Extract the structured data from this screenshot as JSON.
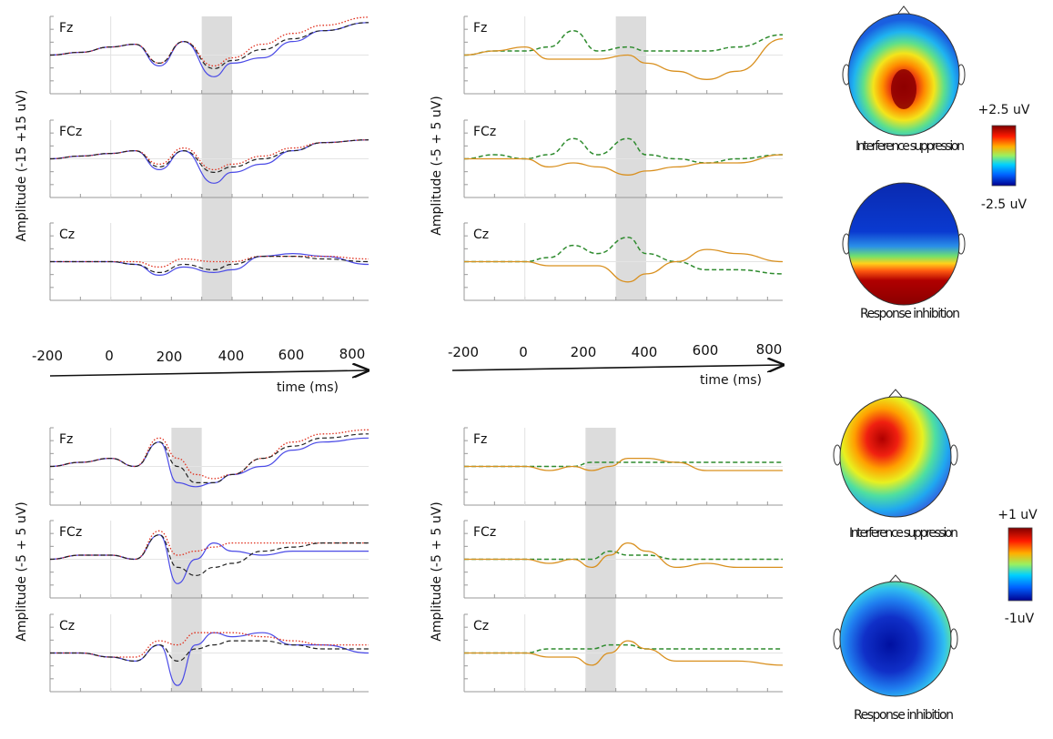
{
  "colors": {
    "blue": "#4a4ae6",
    "red_dotted": "#e0301e",
    "black_dashed": "#222222",
    "green_dashed": "#2e8b2e",
    "orange": "#d9901f",
    "shade": "#dcdcdc",
    "axis": "#999999"
  },
  "layout_labels": {
    "ylabel_top_left": "Amplitude (-15 +15 uV)",
    "ylabel_top_right": "Amplitude (-5 + 5 uV)",
    "ylabel_bottom_left": "Amplitude (-5 + 5 uV)",
    "ylabel_bottom_right": "Amplitude (-5 + 5 uV)",
    "time_axis_label": "time (ms)",
    "time_ticks": [
      "-200",
      "0",
      "200",
      "400",
      "600",
      "800"
    ]
  },
  "topomaps": {
    "top_interference": "Interference suppression",
    "top_inhibition": "Response inhibition",
    "top_colorbar_max": "+2.5 uV",
    "top_colorbar_min": "-2.5 uV",
    "bottom_interference": "Interference suppression",
    "bottom_inhibition": "Response inhibition",
    "bottom_colorbar_max": "+1 uV",
    "bottom_colorbar_min": "-1uV"
  },
  "chart_data": [
    {
      "type": "line",
      "panel": "top-left",
      "ylabel": "Amplitude (-15 +15 uV)",
      "xlabel": "time (ms)",
      "xlim": [
        -200,
        850
      ],
      "ylim": [
        -15,
        15
      ],
      "shaded_window": [
        300,
        400
      ],
      "channels": [
        {
          "label": "Fz",
          "x": [
            -200,
            -100,
            0,
            80,
            160,
            240,
            340,
            400,
            500,
            600,
            700,
            850
          ],
          "series": [
            {
              "style": "blue",
              "values": [
                0,
                1,
                3,
                4,
                -4,
                5,
                -8,
                -3,
                -1,
                5,
                9,
                12
              ]
            },
            {
              "style": "red_dotted",
              "values": [
                0,
                1,
                3,
                4,
                -3,
                5,
                -4,
                -1,
                4,
                8,
                11,
                14
              ]
            },
            {
              "style": "black_dashed",
              "values": [
                0,
                1,
                3,
                4,
                -3,
                5,
                -5,
                -2,
                2,
                6,
                9,
                12
              ]
            }
          ]
        },
        {
          "label": "FCz",
          "x": [
            -200,
            -100,
            0,
            80,
            160,
            240,
            340,
            400,
            500,
            600,
            700,
            850
          ],
          "series": [
            {
              "style": "blue",
              "values": [
                0,
                1,
                2,
                3,
                -4,
                3,
                -9,
                -5,
                -2,
                3,
                6,
                7
              ]
            },
            {
              "style": "red_dotted",
              "values": [
                0,
                1,
                2,
                3,
                -2,
                4,
                -4,
                -2,
                1,
                4,
                6,
                7
              ]
            },
            {
              "style": "black_dashed",
              "values": [
                0,
                1,
                2,
                3,
                -3,
                3,
                -5,
                -3,
                0,
                3,
                6,
                7
              ]
            }
          ]
        },
        {
          "label": "Cz",
          "x": [
            -200,
            -100,
            0,
            80,
            160,
            240,
            340,
            400,
            500,
            600,
            700,
            850
          ],
          "series": [
            {
              "style": "blue",
              "values": [
                0,
                0,
                0,
                -1,
                -5,
                -2,
                -4,
                -3,
                2,
                3,
                2,
                -1
              ]
            },
            {
              "style": "red_dotted",
              "values": [
                0,
                0,
                0,
                0,
                -2,
                1,
                0,
                0,
                2,
                2,
                2,
                1
              ]
            },
            {
              "style": "black_dashed",
              "values": [
                0,
                0,
                0,
                -1,
                -4,
                -1,
                -3,
                -1,
                2,
                2,
                1,
                0
              ]
            }
          ]
        }
      ]
    },
    {
      "type": "line",
      "panel": "top-right",
      "ylabel": "Amplitude (-5 + 5 uV)",
      "xlabel": "time (ms)",
      "xlim": [
        -200,
        850
      ],
      "ylim": [
        -5,
        5
      ],
      "shaded_window": [
        300,
        400
      ],
      "channels": [
        {
          "label": "Fz",
          "x": [
            -200,
            -100,
            0,
            80,
            160,
            240,
            340,
            400,
            500,
            600,
            700,
            850
          ],
          "series": [
            {
              "style": "green_dashed",
              "values": [
                0,
                0.5,
                0.5,
                1,
                3,
                0.5,
                1,
                0.5,
                0.5,
                0.5,
                1,
                2.5
              ]
            },
            {
              "style": "orange",
              "values": [
                0,
                0.5,
                1,
                -0.5,
                -0.5,
                -0.5,
                0,
                -1,
                -2,
                -3,
                -2,
                2
              ]
            }
          ]
        },
        {
          "label": "FCz",
          "x": [
            -200,
            -100,
            0,
            80,
            160,
            240,
            340,
            400,
            500,
            600,
            700,
            850
          ],
          "series": [
            {
              "style": "green_dashed",
              "values": [
                0,
                0.5,
                0,
                0.5,
                2.5,
                0.5,
                2.5,
                0.5,
                0,
                -0.5,
                0,
                0.5
              ]
            },
            {
              "style": "orange",
              "values": [
                0,
                0,
                0,
                -1,
                -0.5,
                -1,
                -2,
                -1.5,
                -1,
                -0.5,
                -0.5,
                0.5
              ]
            }
          ]
        },
        {
          "label": "Cz",
          "x": [
            -200,
            -100,
            0,
            80,
            160,
            240,
            340,
            400,
            500,
            600,
            700,
            850
          ],
          "series": [
            {
              "style": "green_dashed",
              "values": [
                0,
                0,
                0,
                0.5,
                2,
                1,
                3,
                1,
                0,
                -1,
                -1,
                -1.5
              ]
            },
            {
              "style": "orange",
              "values": [
                0,
                0,
                0,
                -0.5,
                -0.5,
                -0.5,
                -2.5,
                -1.5,
                0,
                1.5,
                1,
                0
              ]
            }
          ]
        }
      ]
    },
    {
      "type": "line",
      "panel": "bottom-left",
      "ylabel": "Amplitude (-5 + 5 uV)",
      "xlim": [
        -200,
        850
      ],
      "ylim": [
        -5,
        5
      ],
      "shaded_window": [
        200,
        300
      ],
      "channels": [
        {
          "label": "Fz",
          "x": [
            -200,
            -100,
            0,
            80,
            160,
            220,
            280,
            340,
            400,
            500,
            600,
            700,
            850
          ],
          "series": [
            {
              "style": "blue",
              "values": [
                0,
                0.5,
                1,
                0,
                3,
                -2,
                -2.5,
                -2,
                -1,
                0,
                2,
                3,
                3.5
              ]
            },
            {
              "style": "red_dotted",
              "values": [
                0,
                0.5,
                1,
                0,
                3.5,
                1,
                -1,
                -1.5,
                -1,
                1,
                3,
                4,
                4.5
              ]
            },
            {
              "style": "black_dashed",
              "values": [
                0,
                0.5,
                1,
                0,
                3,
                0,
                -2,
                -2,
                -1,
                1,
                2.5,
                3.5,
                4
              ]
            }
          ]
        },
        {
          "label": "FCz",
          "x": [
            -200,
            -100,
            0,
            80,
            160,
            220,
            280,
            340,
            400,
            500,
            600,
            700,
            850
          ],
          "series": [
            {
              "style": "blue",
              "values": [
                0,
                0.5,
                0.5,
                0,
                3,
                -3,
                0,
                2,
                1,
                0.5,
                1,
                1,
                1
              ]
            },
            {
              "style": "red_dotted",
              "values": [
                0,
                0.5,
                0.5,
                0,
                3.5,
                0.5,
                1,
                1.5,
                2,
                2,
                2,
                2,
                2
              ]
            },
            {
              "style": "black_dashed",
              "values": [
                0,
                0.5,
                0.5,
                0,
                3,
                -1,
                -2,
                -1,
                -0.5,
                1,
                1.5,
                2,
                2
              ]
            }
          ]
        },
        {
          "label": "Cz",
          "x": [
            -200,
            -100,
            0,
            80,
            160,
            220,
            280,
            340,
            400,
            500,
            600,
            700,
            850
          ],
          "series": [
            {
              "style": "blue",
              "values": [
                0,
                0,
                -0.5,
                -1,
                1,
                -4,
                1,
                2.5,
                2,
                2.5,
                1,
                1,
                0
              ]
            },
            {
              "style": "red_dotted",
              "values": [
                0,
                0,
                -0.5,
                -0.5,
                1.5,
                1,
                2.5,
                2.5,
                2.5,
                2,
                1.5,
                1,
                1
              ]
            },
            {
              "style": "black_dashed",
              "values": [
                0,
                0,
                -0.5,
                -1,
                1,
                -1,
                0.5,
                1,
                1.5,
                1.5,
                1,
                0.5,
                0.5
              ]
            }
          ]
        }
      ]
    },
    {
      "type": "line",
      "panel": "bottom-right",
      "ylabel": "Amplitude (-5 + 5 uV)",
      "xlim": [
        -200,
        850
      ],
      "ylim": [
        -5,
        5
      ],
      "shaded_window": [
        200,
        300
      ],
      "channels": [
        {
          "label": "Fz",
          "x": [
            -200,
            -100,
            0,
            80,
            160,
            220,
            280,
            340,
            400,
            500,
            600,
            700,
            850
          ],
          "series": [
            {
              "style": "green_dashed",
              "values": [
                0,
                0,
                0,
                0,
                0,
                0.5,
                0.5,
                0.5,
                0.5,
                0.5,
                0.5,
                0.5,
                0.5
              ]
            },
            {
              "style": "orange",
              "values": [
                0,
                0,
                0,
                -0.5,
                0,
                -0.5,
                0,
                1,
                1,
                0.5,
                -0.5,
                -0.5,
                -0.5
              ]
            }
          ]
        },
        {
          "label": "FCz",
          "x": [
            -200,
            -100,
            0,
            80,
            160,
            220,
            280,
            340,
            400,
            500,
            600,
            700,
            850
          ],
          "series": [
            {
              "style": "green_dashed",
              "values": [
                0,
                0,
                0,
                0,
                0,
                0,
                1,
                0.5,
                0.5,
                0,
                0,
                0,
                0
              ]
            },
            {
              "style": "orange",
              "values": [
                0,
                0,
                0,
                -0.5,
                0,
                -1,
                0.5,
                2,
                1,
                -1,
                -0.5,
                -1,
                -1
              ]
            }
          ]
        },
        {
          "label": "Cz",
          "x": [
            -200,
            -100,
            0,
            80,
            160,
            220,
            280,
            340,
            400,
            500,
            600,
            700,
            850
          ],
          "series": [
            {
              "style": "green_dashed",
              "values": [
                0,
                0,
                0,
                0.5,
                0.5,
                0.5,
                1,
                1,
                0.5,
                0.5,
                0.5,
                0.5,
                0.5
              ]
            },
            {
              "style": "orange",
              "values": [
                0,
                0,
                0,
                -0.5,
                -0.5,
                -1.5,
                0,
                1.5,
                0.5,
                -1,
                -1,
                -1,
                -1.5
              ]
            }
          ]
        }
      ]
    }
  ]
}
